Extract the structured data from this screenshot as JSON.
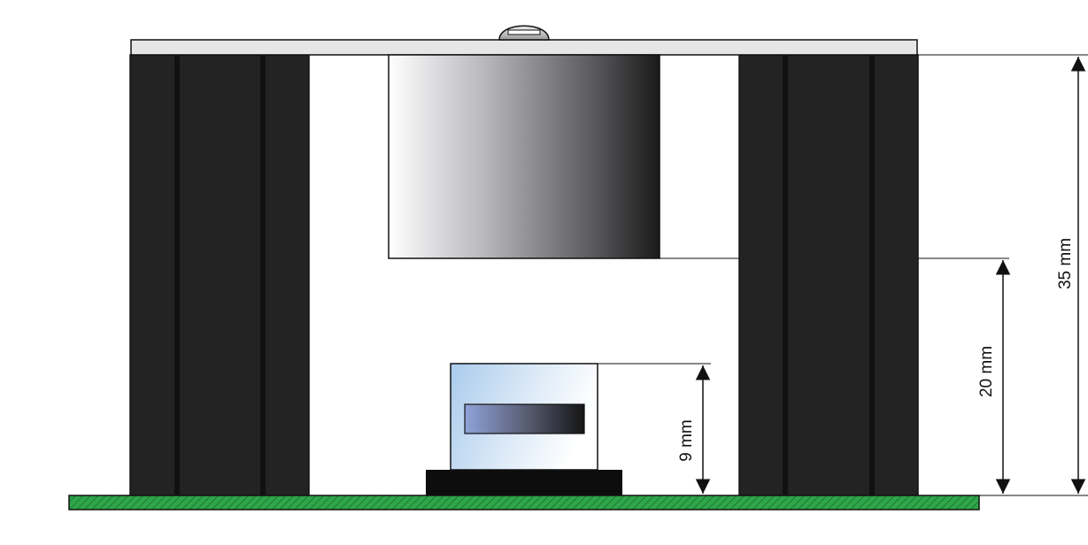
{
  "dimensions": {
    "total_height": {
      "label": "35 mm",
      "value": 35,
      "unit": "mm"
    },
    "cylinder_clearance": {
      "label": "20 mm",
      "value": 20,
      "unit": "mm"
    },
    "sensor_height": {
      "label": "9 mm",
      "value": 9,
      "unit": "mm"
    }
  },
  "colors": {
    "pillar": "#232323",
    "pillar_groove": "#111111",
    "top_plate": "#e6e6e6",
    "pcb": "#2fa64a",
    "pcb_hatch": "#1d7a33",
    "base_block": "#0d0d0d",
    "sensor_light": "#a9cbec",
    "window_light": "#8fa3d9",
    "cylinder_dark": "#1a1a1a",
    "stroke": "#111111"
  },
  "icons": {
    "screw": "screw-head-icon"
  }
}
